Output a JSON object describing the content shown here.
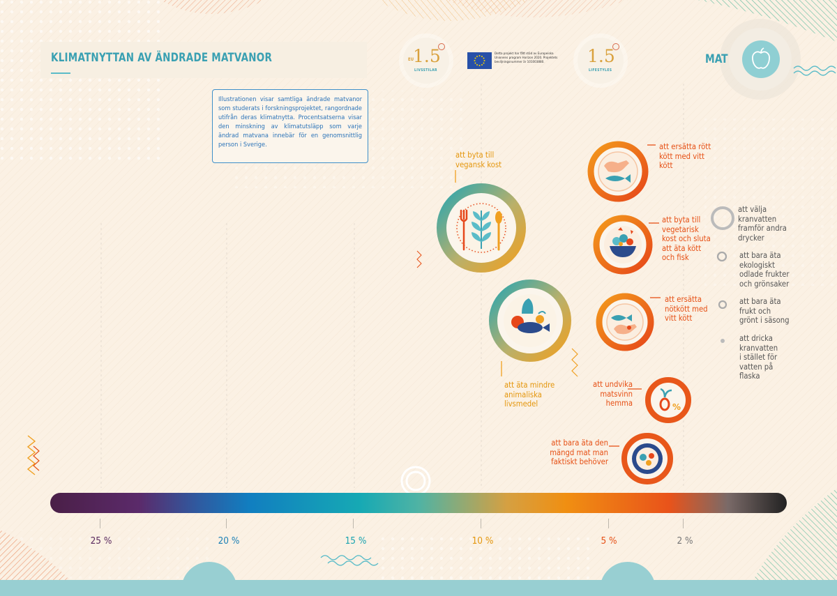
{
  "header": {
    "title": "KLIMATNYTTAN AV ÄNDRADE MATVANOR",
    "description": "Illustrationen visar samtliga ändrade matvanor som studerats i forskningsprojektet, rangordnade utifrån deras klimatnytta. Procentsatserna visar den minskning av klimatutsläpp som varje ändrad matvana innebär för en genomsnittlig person i Sverige.",
    "category": "MAT",
    "logo_left": {
      "num": "1.5",
      "prefix": "EU",
      "sub": "LIVSSTILAR"
    },
    "logo_right": {
      "num": "1.5",
      "sub": "LIFESTYLES"
    },
    "eu_text": "Detta projekt har fått stöd av Europeiska Unionens program Horizon 2020. Projektets beviljningsnummer är 101003880."
  },
  "habits": [
    {
      "label": "att byta till vegansk kost",
      "color": "orange"
    },
    {
      "label": "att äta mindre animaliska livsmedel",
      "color": "orange"
    },
    {
      "label": "att ersätta rött kött med vitt kött",
      "color": "red"
    },
    {
      "label": "att byta till vegetarisk kost och sluta att äta kött och fisk",
      "color": "red"
    },
    {
      "label": "att ersätta nötkött med vitt kött",
      "color": "red"
    },
    {
      "label": "att undvika matsvinn hemma",
      "color": "red"
    },
    {
      "label": "att bara äta den mängd mat man faktiskt behöver",
      "color": "red"
    },
    {
      "label": "att välja kranvatten framför andra drycker",
      "color": "grey"
    },
    {
      "label": "att bara äta ekologiskt odlade frukter och grönsaker",
      "color": "grey"
    },
    {
      "label": "att bara äta frukt och grönt i säsong",
      "color": "grey"
    },
    {
      "label": "att dricka kranvatten i stället för vatten på flaska",
      "color": "grey"
    }
  ],
  "scale": {
    "ticks": [
      {
        "value": 25,
        "label": "25 %",
        "color": "#5a2a5e"
      },
      {
        "value": 20,
        "label": "20 %",
        "color": "#1a7fb5"
      },
      {
        "value": 15,
        "label": "15 %",
        "color": "#19a3b0"
      },
      {
        "value": 10,
        "label": "10 %",
        "color": "#e4960c"
      },
      {
        "value": 5,
        "label": "5 %",
        "color": "#e65015"
      },
      {
        "value": 2,
        "label": "2 %",
        "color": "#777777"
      }
    ]
  },
  "icons": [
    "apple-icon",
    "wheat-cutlery-icon",
    "vegetables-fish-icon",
    "chicken-fish-icon",
    "salad-bowl-icon",
    "zero-waste-icon",
    "plate-icon"
  ]
}
